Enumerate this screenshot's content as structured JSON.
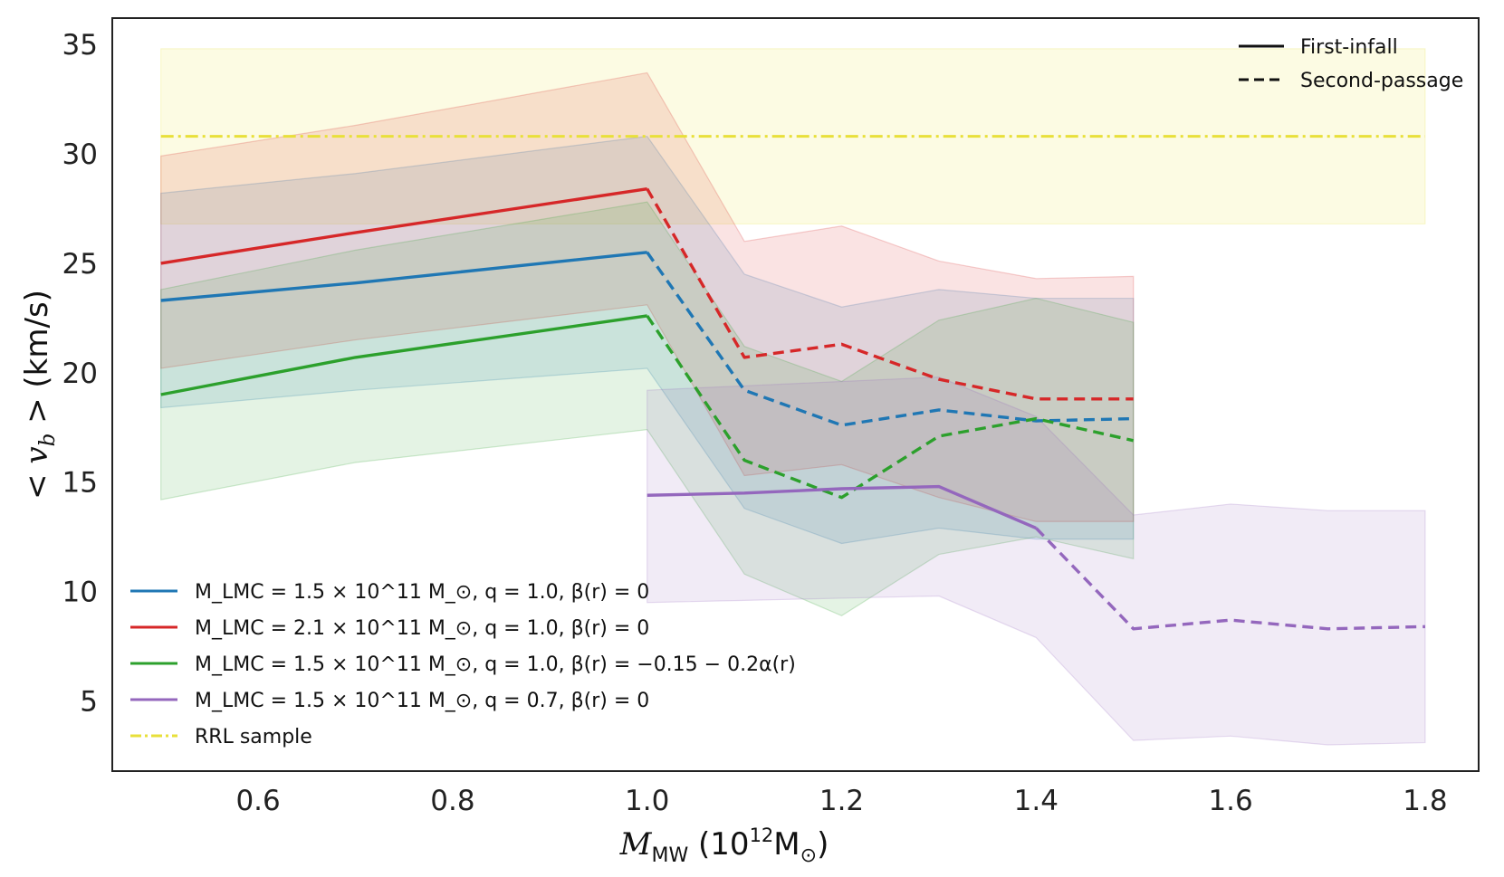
{
  "chart_data": {
    "type": "line",
    "xlabel": "M_MW (10^12 M_sun)",
    "ylabel": "< v_b > (km/s)",
    "xlim": [
      0.45,
      1.855
    ],
    "ylim": [
      1.8,
      36.2
    ],
    "xticks": [
      0.6,
      0.8,
      1.0,
      1.2,
      1.4,
      1.6,
      1.8
    ],
    "xtick_labels": [
      "0.6",
      "0.8",
      "1.0",
      "1.2",
      "1.4",
      "1.6",
      "1.8"
    ],
    "yticks": [
      5,
      10,
      15,
      20,
      25,
      30,
      35
    ],
    "ytick_labels": [
      "5",
      "10",
      "15",
      "20",
      "25",
      "30",
      "35"
    ],
    "grid": false,
    "series": [
      {
        "name": "M_LMC = 1.5 x 10^11 M_sun, q = 1.0, beta(r) = 0",
        "color": "#1f77b4",
        "x": [
          0.5,
          0.7,
          1.0,
          1.1,
          1.2,
          1.3,
          1.4,
          1.5
        ],
        "y": [
          23.3,
          24.1,
          25.5,
          19.2,
          17.6,
          18.3,
          17.8,
          17.9
        ],
        "lower": [
          18.4,
          19.2,
          20.2,
          13.8,
          12.2,
          12.9,
          12.4,
          12.4
        ],
        "upper": [
          28.2,
          29.1,
          30.8,
          24.5,
          23.0,
          23.8,
          23.4,
          23.4
        ],
        "solid_until_index": 2
      },
      {
        "name": "M_LMC = 2.1 x 10^11 M_sun, q = 1.0, beta(r) = 0",
        "color": "#d62728",
        "x": [
          0.5,
          0.7,
          1.0,
          1.1,
          1.2,
          1.3,
          1.4,
          1.5
        ],
        "y": [
          25.0,
          26.4,
          28.4,
          20.7,
          21.3,
          19.7,
          18.8,
          18.8
        ],
        "lower": [
          20.2,
          21.5,
          23.1,
          15.3,
          15.8,
          14.3,
          13.2,
          13.2
        ],
        "upper": [
          29.9,
          31.3,
          33.7,
          26.0,
          26.7,
          25.1,
          24.3,
          24.4
        ],
        "solid_until_index": 2
      },
      {
        "name": "M_LMC = 1.5 x 10^11 M_sun, q = 1.0, beta(r) = -0.15 - 0.2 alpha(r)",
        "color": "#2ca02c",
        "x": [
          0.5,
          0.7,
          1.0,
          1.1,
          1.2,
          1.3,
          1.4,
          1.5
        ],
        "y": [
          19.0,
          20.7,
          22.6,
          16.0,
          14.3,
          17.1,
          17.9,
          16.9
        ],
        "lower": [
          14.2,
          15.9,
          17.4,
          10.8,
          8.9,
          11.7,
          12.5,
          11.5
        ],
        "upper": [
          23.8,
          25.6,
          27.8,
          21.2,
          19.6,
          22.4,
          23.4,
          22.3
        ],
        "solid_until_index": 2
      },
      {
        "name": "M_LMC = 1.5 x 10^11 M_sun, q = 0.7, beta(r) = 0",
        "color": "#9467bd",
        "x": [
          1.0,
          1.1,
          1.2,
          1.3,
          1.4,
          1.5,
          1.6,
          1.7,
          1.8
        ],
        "y": [
          14.4,
          14.5,
          14.7,
          14.8,
          12.9,
          8.3,
          8.7,
          8.3,
          8.4
        ],
        "lower": [
          9.5,
          9.6,
          9.7,
          9.8,
          7.9,
          3.2,
          3.4,
          3.0,
          3.1
        ],
        "upper": [
          19.2,
          19.4,
          19.6,
          19.8,
          18.0,
          13.5,
          14.0,
          13.7,
          13.7
        ],
        "solid_until_index": 4
      }
    ],
    "reference": {
      "name": "RRL sample",
      "color": "#e8e03a",
      "x": [
        0.5,
        1.8
      ],
      "y": 30.8,
      "lower": 26.8,
      "upper": 34.8
    },
    "legend_left": {
      "placement": "lower-left",
      "entries": [
        "M_LMC = 1.5 × 10^11 M_⊙, q = 1.0, β(r) = 0",
        "M_LMC = 2.1 × 10^11 M_⊙, q = 1.0, β(r) = 0",
        "M_LMC = 1.5 × 10^11 M_⊙, q = 1.0, β(r) = −0.15 − 0.2α(r)",
        "M_LMC = 1.5 × 10^11 M_⊙, q = 0.7, β(r) = 0",
        "RRL sample"
      ]
    },
    "legend_right": {
      "placement": "top-right",
      "entries": [
        "First-infall",
        "Second-passage"
      ]
    }
  }
}
